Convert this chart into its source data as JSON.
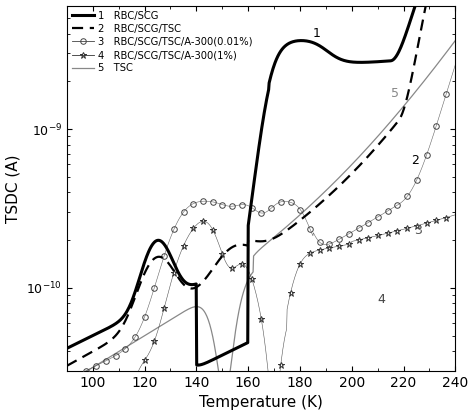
{
  "xlabel": "Temperature (K)",
  "ylabel": "TSDC (A)",
  "xlim": [
    90,
    240
  ],
  "ymin": 3e-11,
  "ymax": 6e-09,
  "legend_labels": [
    "RBC/SCG",
    "RBC/SCG/TSC",
    "RBC/SCG/TSC/A-300(0.01%)",
    "RBC/SCG/TSC/A-300(1%)",
    "TSC"
  ],
  "legend_nums": [
    "1",
    "2",
    "3",
    "4",
    "5"
  ],
  "curve_label_positions": [
    [
      185,
      3.8e-09,
      "1"
    ],
    [
      215,
      1.6e-09,
      "5"
    ],
    [
      223,
      6e-10,
      "2"
    ],
    [
      224,
      2.2e-10,
      "3"
    ],
    [
      210,
      8e-11,
      "4"
    ]
  ]
}
